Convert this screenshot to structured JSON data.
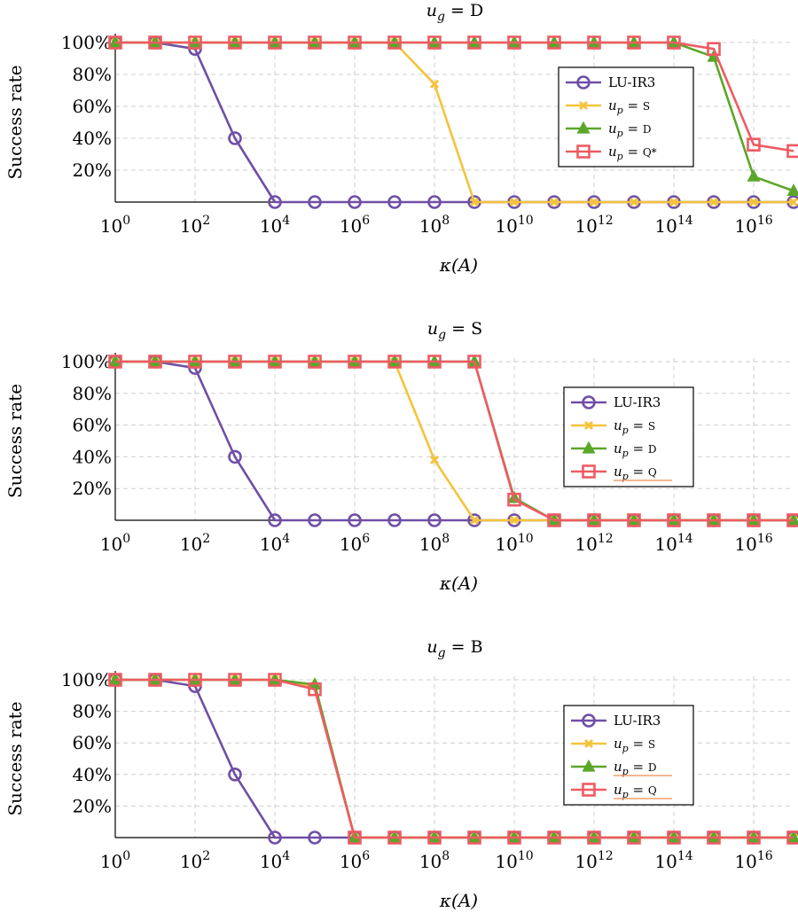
{
  "chart_data": [
    {
      "type": "line",
      "title": "u_g = D",
      "xlabel": "κ(A)",
      "ylabel": "Success rate",
      "xscale": "log",
      "xlim": [
        1,
        1e+17
      ],
      "ylim": [
        0,
        100
      ],
      "x_exponents": [
        0,
        1,
        2,
        3,
        4,
        5,
        6,
        7,
        8,
        9,
        10,
        11,
        12,
        13,
        14,
        15,
        16,
        17
      ],
      "x_tick_exponents": [
        0,
        2,
        4,
        6,
        8,
        10,
        12,
        14,
        16
      ],
      "y_ticks": [
        "20%",
        "40%",
        "60%",
        "80%",
        "100%"
      ],
      "grid": true,
      "legend": "right, upper",
      "series": [
        {
          "name": "LU-IR3",
          "color": "#6f4fa6",
          "marker": "circle",
          "values": [
            100,
            100,
            96,
            40,
            0,
            0,
            0,
            0,
            0,
            0,
            0,
            0,
            0,
            0,
            0,
            0,
            0,
            0
          ]
        },
        {
          "name": "u_p = S",
          "color": "#f5c33b",
          "marker": "x",
          "values": [
            100,
            100,
            100,
            100,
            100,
            100,
            100,
            100,
            74,
            0,
            0,
            0,
            0,
            0,
            0,
            0,
            0,
            0
          ]
        },
        {
          "name": "u_p = D",
          "color": "#5aa72a",
          "marker": "triangle",
          "values": [
            100,
            100,
            100,
            100,
            100,
            100,
            100,
            100,
            100,
            100,
            100,
            100,
            100,
            100,
            100,
            91,
            16,
            7
          ]
        },
        {
          "name": "u_p = Q*",
          "color": "#ef5b63",
          "marker": "square",
          "values": [
            100,
            100,
            100,
            100,
            100,
            100,
            100,
            100,
            100,
            100,
            100,
            100,
            100,
            100,
            100,
            96,
            36,
            32
          ]
        }
      ],
      "legend_struck": []
    },
    {
      "type": "line",
      "title": "u_g = S",
      "xlabel": "κ(A)",
      "ylabel": "Success rate",
      "xscale": "log",
      "xlim": [
        1,
        1e+17
      ],
      "ylim": [
        0,
        100
      ],
      "x_exponents": [
        0,
        1,
        2,
        3,
        4,
        5,
        6,
        7,
        8,
        9,
        10,
        11,
        12,
        13,
        14,
        15,
        16,
        17
      ],
      "x_tick_exponents": [
        0,
        2,
        4,
        6,
        8,
        10,
        12,
        14,
        16
      ],
      "y_ticks": [
        "20%",
        "40%",
        "60%",
        "80%",
        "100%"
      ],
      "grid": true,
      "legend": "right, middle",
      "series": [
        {
          "name": "LU-IR3",
          "color": "#6f4fa6",
          "marker": "circle",
          "values": [
            100,
            100,
            96,
            40,
            0,
            0,
            0,
            0,
            0,
            0,
            0,
            0,
            0,
            0,
            0,
            0,
            0,
            0
          ]
        },
        {
          "name": "u_p = S",
          "color": "#f5c33b",
          "marker": "x",
          "values": [
            100,
            100,
            100,
            100,
            100,
            100,
            100,
            100,
            38,
            0,
            0,
            0,
            0,
            0,
            0,
            0,
            0,
            0
          ]
        },
        {
          "name": "u_p = D",
          "color": "#5aa72a",
          "marker": "triangle",
          "values": [
            100,
            100,
            100,
            100,
            100,
            100,
            100,
            100,
            100,
            100,
            14,
            0,
            0,
            0,
            0,
            0,
            0,
            0
          ]
        },
        {
          "name": "u_p = Q",
          "color": "#ef5b63",
          "marker": "square",
          "values": [
            100,
            100,
            100,
            100,
            100,
            100,
            100,
            100,
            100,
            100,
            13,
            0,
            0,
            0,
            0,
            0,
            0,
            0
          ]
        }
      ],
      "legend_struck": [
        3
      ]
    },
    {
      "type": "line",
      "title": "u_g = B",
      "xlabel": "κ(A)",
      "ylabel": "Success rate",
      "xscale": "log",
      "xlim": [
        1,
        1e+17
      ],
      "ylim": [
        0,
        100
      ],
      "x_exponents": [
        0,
        1,
        2,
        3,
        4,
        5,
        6,
        7,
        8,
        9,
        10,
        11,
        12,
        13,
        14,
        15,
        16,
        17
      ],
      "x_tick_exponents": [
        0,
        2,
        4,
        6,
        8,
        10,
        12,
        14,
        16
      ],
      "y_ticks": [
        "20%",
        "40%",
        "60%",
        "80%",
        "100%"
      ],
      "grid": true,
      "legend": "right, middle",
      "series": [
        {
          "name": "LU-IR3",
          "color": "#6f4fa6",
          "marker": "circle",
          "values": [
            100,
            100,
            96,
            40,
            0,
            0,
            0,
            0,
            0,
            0,
            0,
            0,
            0,
            0,
            0,
            0,
            0,
            0
          ]
        },
        {
          "name": "u_p = S",
          "color": "#f5c33b",
          "marker": "x",
          "values": [
            100,
            100,
            100,
            100,
            100,
            96,
            0,
            0,
            0,
            0,
            0,
            0,
            0,
            0,
            0,
            0,
            0,
            0
          ]
        },
        {
          "name": "u_p = D",
          "color": "#5aa72a",
          "marker": "triangle",
          "values": [
            100,
            100,
            100,
            100,
            100,
            97,
            0,
            0,
            0,
            0,
            0,
            0,
            0,
            0,
            0,
            0,
            0,
            0
          ]
        },
        {
          "name": "u_p = Q",
          "color": "#ef5b63",
          "marker": "square",
          "values": [
            100,
            100,
            100,
            100,
            100,
            94,
            0,
            0,
            0,
            0,
            0,
            0,
            0,
            0,
            0,
            0,
            0,
            0
          ]
        }
      ],
      "legend_struck": [
        2,
        3
      ]
    }
  ]
}
